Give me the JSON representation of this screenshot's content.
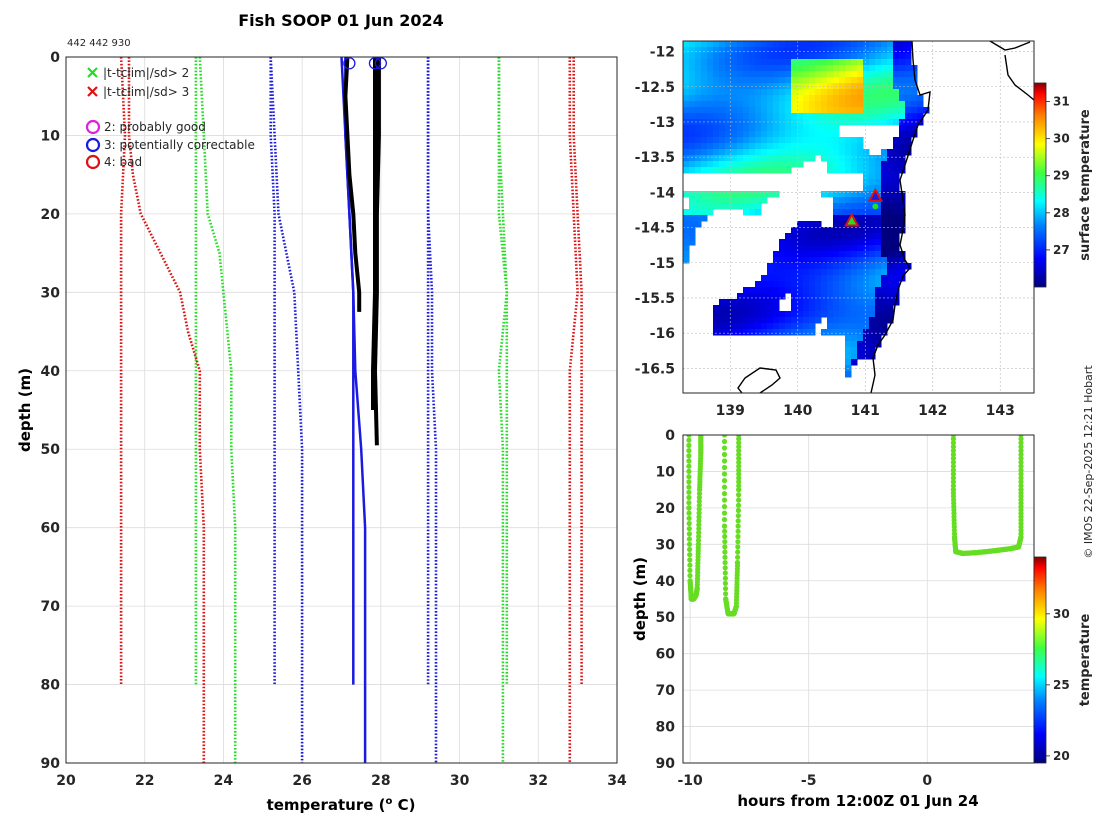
{
  "figure": {
    "title": "Fish SOOP 01 Jun 2024",
    "id_label": "442 442 930",
    "copyright": "© IMOS 22-Sep-2025 12:21 Hobart"
  },
  "colors": {
    "green": "#22dd22",
    "red": "#dd1111",
    "blue": "#1a1ae0",
    "magenta": "#dd22dd",
    "black": "#000000",
    "track": "#66dd22"
  },
  "chart_data": [
    {
      "type": "line",
      "title": "Fish SOOP 01 Jun 2024",
      "xlabel": "temperature (o C)",
      "ylabel": "depth (m)",
      "xlim": [
        20,
        34
      ],
      "ylim": [
        90,
        0
      ],
      "xticks": [
        "20",
        "22",
        "24",
        "26",
        "28",
        "30",
        "32",
        "34"
      ],
      "yticks": [
        "0",
        "10",
        "20",
        "30",
        "40",
        "50",
        "60",
        "70",
        "80",
        "90"
      ],
      "grid": true,
      "legend_position": "top-left",
      "legend": [
        {
          "marker": "x",
          "color": "green",
          "label": "|t-tclim|/sd> 2"
        },
        {
          "marker": "x",
          "color": "red",
          "label": "|t-tclim|/sd> 3"
        },
        {
          "marker": "o",
          "color": "magenta",
          "label": "2: probably good"
        },
        {
          "marker": "o",
          "color": "blue",
          "label": "3: potentially correctable"
        },
        {
          "marker": "o",
          "color": "red",
          "label": "4: bad"
        }
      ],
      "climatology_bounds": [
        {
          "name": "clim1 -3sd",
          "color": "red",
          "dash": true,
          "depth": [
            0,
            10,
            20,
            30,
            40,
            50,
            60,
            70,
            80
          ],
          "temp": [
            21.4,
            21.5,
            21.4,
            21.4,
            21.4,
            21.4,
            21.4,
            21.4,
            21.4
          ]
        },
        {
          "name": "clim1 -2sd",
          "color": "green",
          "dash": true,
          "depth": [
            0,
            10,
            20,
            30,
            40,
            50,
            60,
            70,
            80
          ],
          "temp": [
            23.3,
            23.3,
            23.3,
            23.3,
            23.3,
            23.3,
            23.3,
            23.3,
            23.3
          ]
        },
        {
          "name": "clim1 -1sd",
          "color": "blue",
          "dash": true,
          "depth": [
            0,
            10,
            20,
            30,
            40,
            50,
            60,
            70,
            80
          ],
          "temp": [
            25.2,
            25.2,
            25.3,
            25.3,
            25.3,
            25.3,
            25.3,
            25.3,
            25.3
          ]
        },
        {
          "name": "clim1 +1sd",
          "color": "blue",
          "dash": true,
          "depth": [
            0,
            10,
            20,
            30,
            40,
            50,
            60,
            70,
            80
          ],
          "temp": [
            29.2,
            29.2,
            29.2,
            29.2,
            29.2,
            29.2,
            29.2,
            29.2,
            29.2
          ]
        },
        {
          "name": "clim1 +2sd",
          "color": "green",
          "dash": true,
          "depth": [
            0,
            10,
            20,
            30,
            40,
            50,
            60,
            70,
            80
          ],
          "temp": [
            31.0,
            31.0,
            31.0,
            31.2,
            31.2,
            31.2,
            31.2,
            31.2,
            31.2
          ]
        },
        {
          "name": "clim1 +3sd",
          "color": "red",
          "dash": true,
          "depth": [
            0,
            10,
            20,
            30,
            40,
            50,
            60,
            70,
            80
          ],
          "temp": [
            32.9,
            32.9,
            33.0,
            33.1,
            33.1,
            33.1,
            33.1,
            33.1,
            33.1
          ]
        },
        {
          "name": "clim2 -3sd",
          "color": "red",
          "dash": true,
          "depth": [
            0,
            10,
            15,
            20,
            25,
            30,
            35,
            40,
            50,
            60,
            70,
            80,
            90
          ],
          "temp": [
            21.6,
            21.6,
            21.7,
            21.9,
            22.4,
            22.9,
            23.1,
            23.4,
            23.4,
            23.5,
            23.5,
            23.5,
            23.5
          ]
        },
        {
          "name": "clim2 -2sd",
          "color": "green",
          "dash": true,
          "depth": [
            0,
            10,
            20,
            25,
            30,
            40,
            50,
            60,
            70,
            80,
            90
          ],
          "temp": [
            23.4,
            23.5,
            23.6,
            23.9,
            24.0,
            24.2,
            24.2,
            24.3,
            24.3,
            24.3,
            24.3
          ]
        },
        {
          "name": "clim2 -1sd",
          "color": "blue",
          "dash": true,
          "depth": [
            0,
            10,
            20,
            25,
            30,
            40,
            50,
            60,
            70,
            80,
            90
          ],
          "temp": [
            25.2,
            25.3,
            25.4,
            25.6,
            25.8,
            25.9,
            26.0,
            26.0,
            26.0,
            26.0,
            26.0
          ]
        },
        {
          "name": "clim2 +1sd",
          "color": "blue",
          "dash": true,
          "depth": [
            0,
            10,
            20,
            30,
            40,
            50,
            60,
            70,
            80,
            90
          ],
          "temp": [
            29.2,
            29.2,
            29.2,
            29.3,
            29.3,
            29.4,
            29.4,
            29.4,
            29.4,
            29.4
          ]
        },
        {
          "name": "clim2 +2sd",
          "color": "green",
          "dash": true,
          "depth": [
            0,
            10,
            20,
            30,
            40,
            50,
            60,
            70,
            80,
            90
          ],
          "temp": [
            31.0,
            31.0,
            31.1,
            31.2,
            31.0,
            31.1,
            31.1,
            31.1,
            31.1,
            31.1
          ]
        },
        {
          "name": "clim2 +3sd",
          "color": "red",
          "dash": true,
          "depth": [
            0,
            10,
            20,
            30,
            40,
            50,
            60,
            70,
            80,
            90
          ],
          "temp": [
            32.8,
            32.8,
            32.9,
            33.0,
            32.8,
            32.8,
            32.8,
            32.8,
            32.8,
            32.8
          ]
        }
      ],
      "profiles": [
        {
          "name": "profile A (blue)",
          "color": "blue",
          "width": 2.5,
          "depth": [
            0,
            10,
            20,
            30,
            40,
            50,
            60,
            70,
            80
          ],
          "temp": [
            27.1,
            27.1,
            27.2,
            27.3,
            27.3,
            27.3,
            27.3,
            27.3,
            27.3
          ]
        },
        {
          "name": "profile B (blue)",
          "color": "blue",
          "width": 2.5,
          "depth": [
            0,
            5,
            10,
            20,
            30,
            40,
            50,
            60,
            70,
            80,
            90
          ],
          "temp": [
            27.0,
            27.05,
            27.1,
            27.2,
            27.3,
            27.35,
            27.5,
            27.6,
            27.6,
            27.6,
            27.6
          ]
        },
        {
          "name": "profile C (black)",
          "color": "black",
          "width": 4,
          "depth": [
            0,
            5,
            10,
            15,
            20,
            25,
            30,
            32.5
          ],
          "temp": [
            27.15,
            27.1,
            27.15,
            27.2,
            27.3,
            27.35,
            27.45,
            27.45
          ]
        },
        {
          "name": "profile D (black)",
          "color": "black",
          "width": 4,
          "depth": [
            0,
            10,
            20,
            30,
            40,
            45
          ],
          "temp": [
            27.85,
            27.85,
            27.85,
            27.85,
            27.8,
            27.8
          ]
        },
        {
          "name": "profile E (black)",
          "color": "black",
          "width": 4,
          "depth": [
            0,
            10,
            20,
            30,
            40,
            49.5
          ],
          "temp": [
            27.95,
            27.95,
            27.9,
            27.9,
            27.85,
            27.9
          ]
        }
      ],
      "flags": [
        {
          "flag": 3,
          "color": "blue",
          "temp": 27.2,
          "depth": 0.8
        },
        {
          "flag": 3,
          "color": "blue",
          "temp": 27.85,
          "depth": 0.8
        },
        {
          "flag": 3,
          "color": "blue",
          "temp": 28.0,
          "depth": 0.8
        }
      ]
    },
    {
      "type": "heatmap",
      "title": "surface temperature map",
      "xticks": [
        "139",
        "140",
        "141",
        "142",
        "143"
      ],
      "yticks": [
        "-12",
        "-12.5",
        "-13",
        "-13.5",
        "-14",
        "-14.5",
        "-15",
        "-15.5",
        "-16",
        "-16.5"
      ],
      "xlim": [
        138.3,
        143.5
      ],
      "ylim": [
        -16.85,
        -11.85
      ],
      "colorbar_label": "surface temperature",
      "colorbar_ticks": [
        "27",
        "28",
        "29",
        "30",
        "31"
      ],
      "colorbar_range": [
        26,
        31.5
      ],
      "markers": [
        {
          "type": "triangle",
          "lon": 141.15,
          "lat": -14.05,
          "edge": "red",
          "fill": "blue"
        },
        {
          "type": "triangle",
          "lon": 140.8,
          "lat": -14.4,
          "edge": "red",
          "fill": "green"
        },
        {
          "type": "dot",
          "lon": 141.15,
          "lat": -14.2,
          "color": "green"
        }
      ]
    },
    {
      "type": "scatter",
      "title": "drop positions vs time",
      "xlabel": "hours from 12:00Z 01 Jun 24",
      "ylabel": "depth (m)",
      "xlim": [
        -10.3,
        4.5
      ],
      "ylim": [
        90,
        0
      ],
      "xticks": [
        "-10",
        "-5",
        "0"
      ],
      "yticks": [
        "0",
        "10",
        "20",
        "30",
        "40",
        "50",
        "60",
        "70",
        "80",
        "90"
      ],
      "grid": true,
      "colorbar_label": "temperature",
      "colorbar_ticks": [
        "20",
        "25",
        "30"
      ],
      "colorbar_range": [
        19.5,
        34
      ],
      "drops": [
        {
          "x": [
            -10.05,
            -10.05,
            -10.0,
            -9.95,
            -9.85,
            -9.75,
            -9.7,
            -9.65,
            -9.6,
            -9.55,
            -9.55
          ],
          "depth": [
            0,
            20,
            40,
            45,
            45,
            44,
            42,
            30,
            15,
            5,
            0
          ]
        },
        {
          "x": [
            -8.55,
            -8.55,
            -8.5,
            -8.4,
            -8.25,
            -8.15,
            -8.05,
            -8.0,
            -7.95,
            -7.95
          ],
          "depth": [
            0,
            25,
            45,
            49,
            49,
            49,
            47,
            35,
            15,
            0
          ]
        },
        {
          "x": [
            1.1,
            1.1,
            1.15,
            1.2,
            1.5,
            2.0,
            2.5,
            3.0,
            3.5,
            3.85,
            3.95,
            3.95,
            3.95
          ],
          "depth": [
            0,
            15,
            28,
            32,
            32.5,
            32.3,
            32.0,
            31.6,
            31.2,
            30.7,
            28,
            15,
            0
          ]
        }
      ]
    }
  ]
}
